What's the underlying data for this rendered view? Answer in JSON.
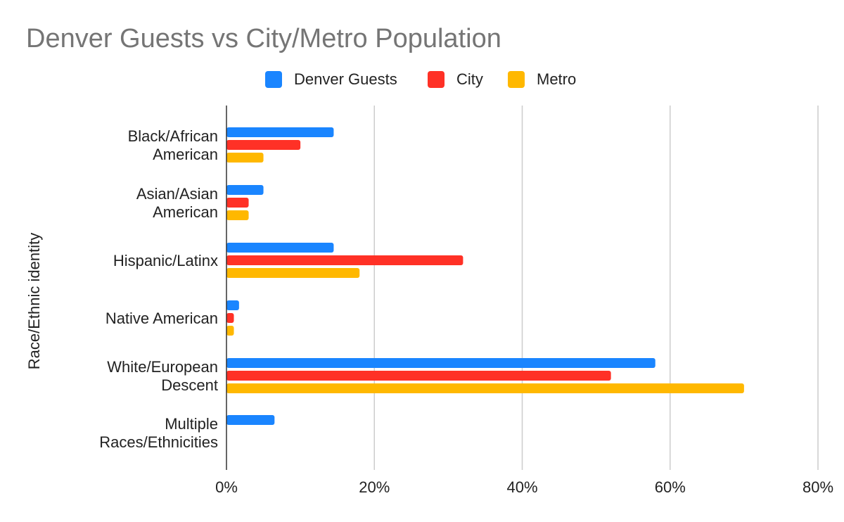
{
  "chart_data": {
    "type": "bar",
    "orientation": "horizontal",
    "title": "Denver Guests vs City/Metro Population",
    "ylabel": "Race/Ethnic identity",
    "xlabel": "",
    "categories": [
      [
        "Black/African",
        "American"
      ],
      [
        "Asian/Asian",
        "American"
      ],
      [
        "Hispanic/Latinx"
      ],
      [
        "Native American"
      ],
      [
        "White/European",
        "Descent"
      ],
      [
        "Multiple",
        "Races/Ethnicities"
      ]
    ],
    "series": [
      {
        "name": "Denver Guests",
        "color": "#1a85ff",
        "values": [
          14.5,
          5,
          14.5,
          1.7,
          58,
          6.5
        ]
      },
      {
        "name": "City",
        "color": "#ff3126",
        "values": [
          10,
          3,
          32,
          1,
          52,
          0
        ]
      },
      {
        "name": "Metro",
        "color": "#ffb800",
        "values": [
          5,
          3,
          18,
          1,
          70,
          0
        ]
      }
    ],
    "xlim": [
      0,
      80
    ],
    "xticks": [
      "0%",
      "20%",
      "40%",
      "60%",
      "80%"
    ],
    "xtick_values": [
      0,
      20,
      40,
      60,
      80
    ],
    "grid": true,
    "legend_position": "top"
  }
}
